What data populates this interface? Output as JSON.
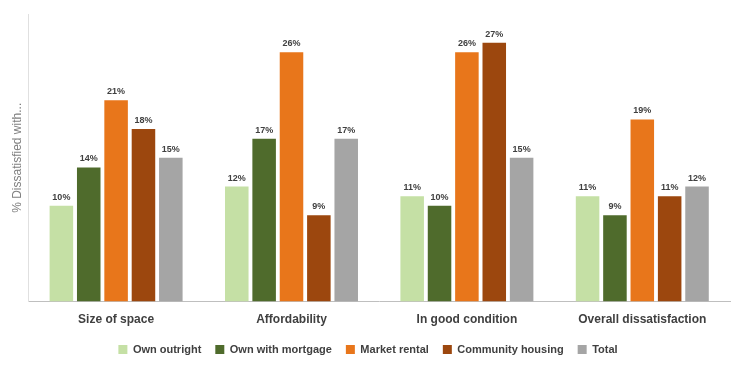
{
  "chart_data": {
    "type": "bar",
    "y_label": "% Dissatisfied with...",
    "categories": [
      "Size of space",
      "Affordability",
      "In good condition",
      "Overall dissatisfaction"
    ],
    "series": [
      {
        "name": "Own outright",
        "color": "#c5e0a5",
        "values": [
          10,
          12,
          11,
          11
        ],
        "value_labels": [
          "10%",
          "12%",
          "11%",
          "11%"
        ]
      },
      {
        "name": "Own with mortgage",
        "color": "#4f6b2c",
        "values": [
          14,
          17,
          10,
          9
        ],
        "value_labels": [
          "14%",
          "17%",
          "10%",
          "9%"
        ]
      },
      {
        "name": "Market rental",
        "color": "#e8761b",
        "values": [
          21,
          26,
          26,
          19
        ],
        "value_labels": [
          "21%",
          "26%",
          "26%",
          "19%"
        ]
      },
      {
        "name": "Community housing",
        "color": "#9c470e",
        "values": [
          18,
          9,
          27,
          11
        ],
        "value_labels": [
          "18%",
          "9%",
          "27%",
          "11%"
        ]
      },
      {
        "name": "Total",
        "color": "#a5a5a5",
        "values": [
          15,
          17,
          15,
          12
        ],
        "value_labels": [
          "15%",
          "17%",
          "15%",
          "12%"
        ]
      }
    ],
    "ylim": [
      0,
      30
    ],
    "grid": false,
    "legend": "bottom",
    "data_labels": true,
    "tick_labels": "x"
  }
}
